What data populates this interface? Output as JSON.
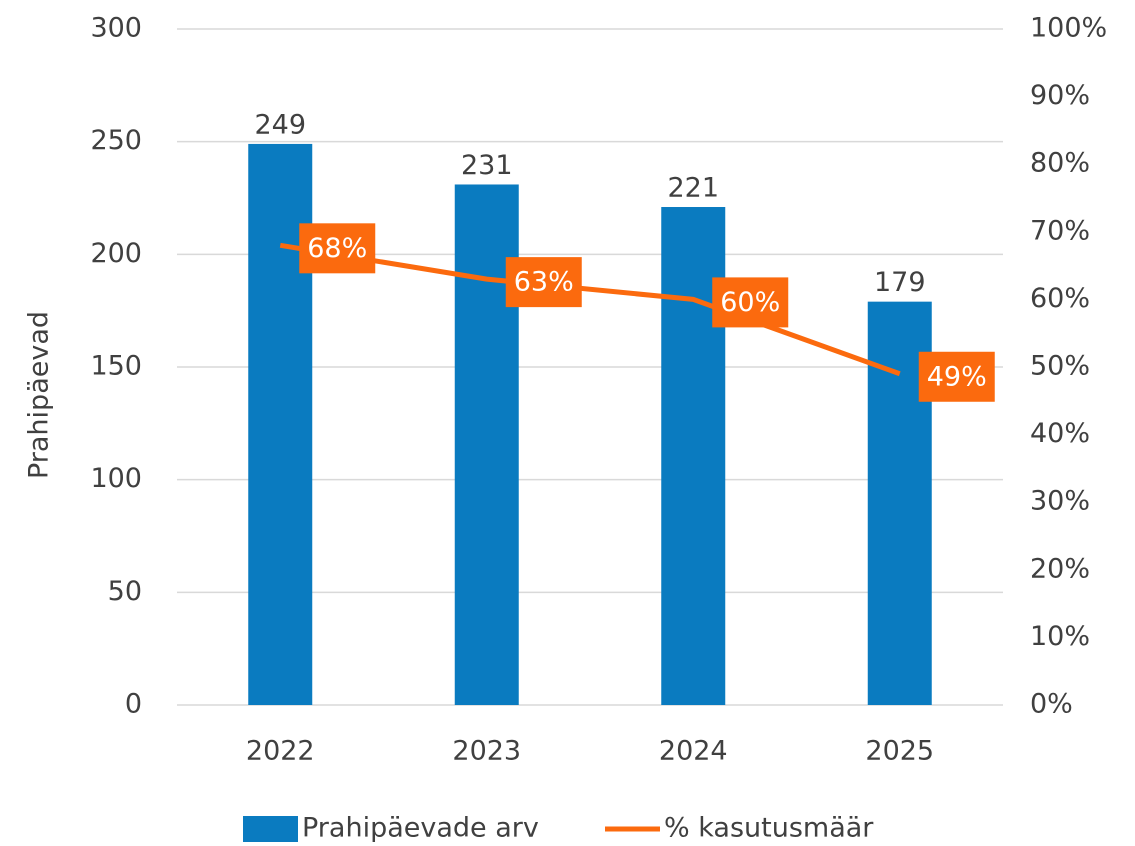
{
  "chart_data": {
    "type": "bar",
    "y_label": "Prahipäevad",
    "categories": [
      "2022",
      "2023",
      "2024",
      "2025"
    ],
    "series": [
      {
        "name": "Prahipäevade arv",
        "color": "#0a7bc0",
        "type": "bar",
        "values": [
          249,
          231,
          221,
          179
        ]
      },
      {
        "name": "% kasutusmäär",
        "color": "#fb6a0e",
        "type": "line",
        "axis": "y2",
        "values": [
          68,
          63,
          60,
          49
        ],
        "value_labels": [
          "68%",
          "63%",
          "60%",
          "49%"
        ]
      }
    ],
    "ylim": [
      0,
      300
    ],
    "yticks": [
      0,
      50,
      100,
      150,
      200,
      250,
      300
    ],
    "y2lim": [
      0,
      100
    ],
    "y2ticks": [
      {
        "value": 0,
        "label": "0%"
      },
      {
        "value": 10,
        "label": "10%"
      },
      {
        "value": 20,
        "label": "20%"
      },
      {
        "value": 30,
        "label": "30%"
      },
      {
        "value": 40,
        "label": "40%"
      },
      {
        "value": 50,
        "label": "50%"
      },
      {
        "value": 60,
        "label": "60%"
      },
      {
        "value": 70,
        "label": "70%"
      },
      {
        "value": 80,
        "label": "80%"
      },
      {
        "value": 90,
        "label": "90%"
      },
      {
        "value": 100,
        "label": "100%"
      }
    ],
    "grid": true,
    "legend": "bottom"
  }
}
